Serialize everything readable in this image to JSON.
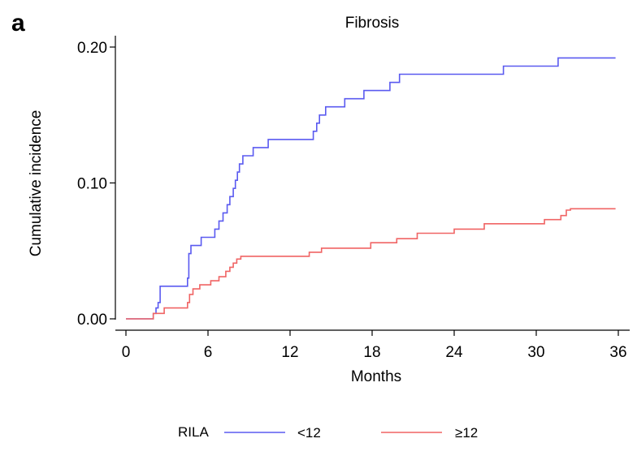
{
  "panel_label": "a",
  "chart_data": {
    "type": "line",
    "subtype": "step",
    "title": "Fibrosis",
    "xlabel": "Months",
    "ylabel": "Cumulative incidence",
    "xlim": [
      0,
      36
    ],
    "ylim": [
      0,
      0.2
    ],
    "x_ticks": [
      0,
      6,
      12,
      18,
      24,
      30,
      36
    ],
    "x_tick_labels": [
      "0",
      "6",
      "12",
      "18",
      "24",
      "30",
      "36"
    ],
    "y_ticks": [
      0,
      0.1,
      0.2
    ],
    "y_tick_labels": [
      "0.00",
      "0.10",
      "0.20"
    ],
    "grid": false,
    "legend_title": "RILA",
    "legend_position": "bottom",
    "series": [
      {
        "name": "<12",
        "color": "#5a5af0",
        "points": [
          [
            0,
            0
          ],
          [
            2.0,
            0
          ],
          [
            2.0,
            0.004
          ],
          [
            2.2,
            0.004
          ],
          [
            2.2,
            0.008
          ],
          [
            2.35,
            0.008
          ],
          [
            2.35,
            0.012
          ],
          [
            2.5,
            0.012
          ],
          [
            2.5,
            0.024
          ],
          [
            4.5,
            0.024
          ],
          [
            4.5,
            0.03
          ],
          [
            4.6,
            0.03
          ],
          [
            4.6,
            0.048
          ],
          [
            4.75,
            0.048
          ],
          [
            4.75,
            0.054
          ],
          [
            5.5,
            0.054
          ],
          [
            5.5,
            0.06
          ],
          [
            6.5,
            0.06
          ],
          [
            6.5,
            0.066
          ],
          [
            6.8,
            0.066
          ],
          [
            6.8,
            0.072
          ],
          [
            7.1,
            0.072
          ],
          [
            7.1,
            0.078
          ],
          [
            7.4,
            0.078
          ],
          [
            7.4,
            0.084
          ],
          [
            7.6,
            0.084
          ],
          [
            7.6,
            0.09
          ],
          [
            7.85,
            0.09
          ],
          [
            7.85,
            0.096
          ],
          [
            8.0,
            0.096
          ],
          [
            8.0,
            0.102
          ],
          [
            8.15,
            0.102
          ],
          [
            8.15,
            0.108
          ],
          [
            8.3,
            0.108
          ],
          [
            8.3,
            0.114
          ],
          [
            8.55,
            0.114
          ],
          [
            8.55,
            0.12
          ],
          [
            9.3,
            0.12
          ],
          [
            9.3,
            0.126
          ],
          [
            10.4,
            0.126
          ],
          [
            10.4,
            0.132
          ],
          [
            13.7,
            0.132
          ],
          [
            13.7,
            0.138
          ],
          [
            13.95,
            0.138
          ],
          [
            13.95,
            0.144
          ],
          [
            14.15,
            0.144
          ],
          [
            14.15,
            0.15
          ],
          [
            14.6,
            0.15
          ],
          [
            14.6,
            0.156
          ],
          [
            16.0,
            0.156
          ],
          [
            16.0,
            0.162
          ],
          [
            17.4,
            0.162
          ],
          [
            17.4,
            0.168
          ],
          [
            19.3,
            0.168
          ],
          [
            19.3,
            0.174
          ],
          [
            20.0,
            0.174
          ],
          [
            20.0,
            0.18
          ],
          [
            27.6,
            0.18
          ],
          [
            27.6,
            0.186
          ],
          [
            31.6,
            0.186
          ],
          [
            31.6,
            0.192
          ],
          [
            35.8,
            0.192
          ]
        ]
      },
      {
        "name": "≥12",
        "color": "#f06464",
        "points": [
          [
            0,
            0
          ],
          [
            2.0,
            0
          ],
          [
            2.0,
            0.004
          ],
          [
            2.8,
            0.004
          ],
          [
            2.8,
            0.008
          ],
          [
            4.5,
            0.008
          ],
          [
            4.5,
            0.012
          ],
          [
            4.65,
            0.012
          ],
          [
            4.65,
            0.018
          ],
          [
            4.9,
            0.018
          ],
          [
            4.9,
            0.022
          ],
          [
            5.4,
            0.022
          ],
          [
            5.4,
            0.025
          ],
          [
            6.2,
            0.025
          ],
          [
            6.2,
            0.028
          ],
          [
            6.8,
            0.028
          ],
          [
            6.8,
            0.031
          ],
          [
            7.3,
            0.031
          ],
          [
            7.3,
            0.035
          ],
          [
            7.6,
            0.035
          ],
          [
            7.6,
            0.038
          ],
          [
            7.85,
            0.038
          ],
          [
            7.85,
            0.041
          ],
          [
            8.1,
            0.041
          ],
          [
            8.1,
            0.044
          ],
          [
            8.4,
            0.044
          ],
          [
            8.4,
            0.046
          ],
          [
            13.4,
            0.046
          ],
          [
            13.4,
            0.049
          ],
          [
            14.3,
            0.049
          ],
          [
            14.3,
            0.052
          ],
          [
            17.9,
            0.052
          ],
          [
            17.9,
            0.056
          ],
          [
            19.8,
            0.056
          ],
          [
            19.8,
            0.059
          ],
          [
            21.3,
            0.059
          ],
          [
            21.3,
            0.063
          ],
          [
            24.0,
            0.063
          ],
          [
            24.0,
            0.066
          ],
          [
            26.2,
            0.066
          ],
          [
            26.2,
            0.07
          ],
          [
            30.6,
            0.07
          ],
          [
            30.6,
            0.073
          ],
          [
            31.8,
            0.073
          ],
          [
            31.8,
            0.076
          ],
          [
            32.2,
            0.076
          ],
          [
            32.2,
            0.08
          ],
          [
            32.5,
            0.08
          ],
          [
            32.5,
            0.081
          ],
          [
            35.8,
            0.081
          ]
        ]
      }
    ]
  }
}
